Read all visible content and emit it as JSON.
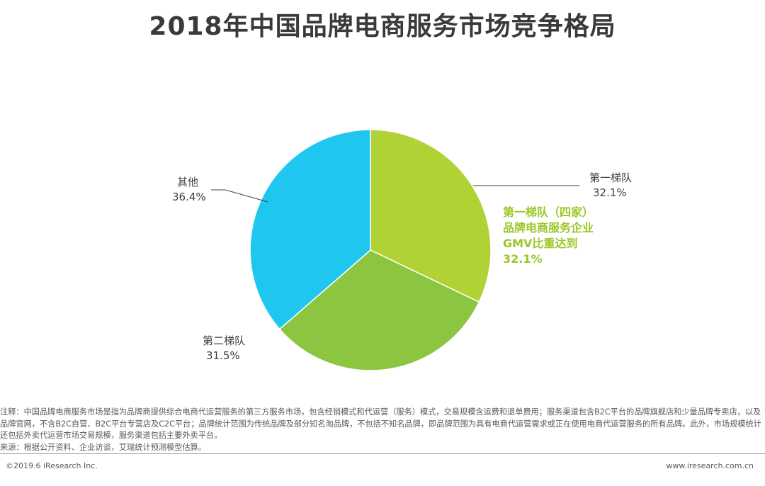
{
  "chart_data": {
    "type": "pie",
    "title": "2018年中国品牌电商服务市场竞争格局",
    "slices": [
      {
        "name": "第一梯队",
        "value": 32.1,
        "label": "32.1%",
        "color": "#b0d235"
      },
      {
        "name": "第二梯队",
        "value": 31.5,
        "label": "31.5%",
        "color": "#8cc640"
      },
      {
        "name": "其他",
        "value": 36.4,
        "label": "36.4%",
        "color": "#1fc7f0"
      }
    ],
    "annotation": [
      "第一梯队（四家）",
      "品牌电商服务企业",
      "GMV比重达到",
      "32.1%"
    ],
    "annotation_color": "#9bc727"
  },
  "notes": {
    "note": "注释：中国品牌电商服务市场是指为品牌商提供综合电商代运营服务的第三方服务市场，包含经销模式和代运营（服务）模式，交易规模含运费和退单费用；服务渠道包含B2C平台的品牌旗舰店和少量品牌专卖店，以及品牌官网，不含B2C自营、B2C平台专营店及C2C平台；品牌统计范围为传统品牌及部分知名淘品牌，不包括不知名品牌，即品牌范围为具有电商代运营需求或正在使用电商代运营服务的所有品牌。此外，市场规模统计还包括外卖代运营市场交易规模，服务渠道包括主要外卖平台。",
    "source": "来源：根据公开资料、企业访谈，艾瑞统计预测模型估算。"
  },
  "footer": {
    "copyright": "©2019.6 iResearch Inc.",
    "website": "www.iresearch.com.cn"
  }
}
